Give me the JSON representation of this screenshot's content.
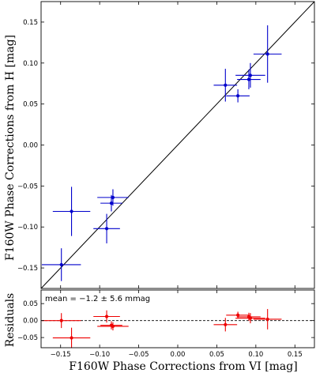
{
  "chart_data": [
    {
      "type": "scatter",
      "title": "",
      "xlabel": "F160W Phase Corrections from VI [mag]",
      "ylabel": "F160W Phase Corrections from H [mag]",
      "xlim": [
        -0.175,
        0.175
      ],
      "ylim": [
        -0.175,
        0.175
      ],
      "xticks": [
        "−0.15",
        "−0.10",
        "−0.05",
        "0.00",
        "0.05",
        "0.10",
        "0.15"
      ],
      "yticks": [
        "−0.15",
        "−0.10",
        "−0.05",
        "0.00",
        "0.05",
        "0.10",
        "0.15"
      ],
      "one_to_one_line": true,
      "color": "#0000cc",
      "points": [
        {
          "x": -0.149,
          "y": -0.146,
          "xerr": 0.025,
          "yerr": 0.02
        },
        {
          "x": -0.136,
          "y": -0.081,
          "xerr": 0.024,
          "yerr": 0.03
        },
        {
          "x": -0.091,
          "y": -0.102,
          "xerr": 0.017,
          "yerr": 0.018
        },
        {
          "x": -0.085,
          "y": -0.071,
          "xerr": 0.014,
          "yerr": 0.01
        },
        {
          "x": -0.083,
          "y": -0.064,
          "xerr": 0.02,
          "yerr": 0.01
        },
        {
          "x": 0.061,
          "y": 0.073,
          "xerr": 0.015,
          "yerr": 0.02
        },
        {
          "x": 0.077,
          "y": 0.06,
          "xerr": 0.015,
          "yerr": 0.008
        },
        {
          "x": 0.091,
          "y": 0.08,
          "xerr": 0.015,
          "yerr": 0.012
        },
        {
          "x": 0.093,
          "y": 0.085,
          "xerr": 0.019,
          "yerr": 0.015
        },
        {
          "x": 0.115,
          "y": 0.111,
          "xerr": 0.018,
          "yerr": 0.035
        }
      ]
    },
    {
      "type": "scatter",
      "ylabel": "Residuals",
      "xlim": [
        -0.175,
        0.175
      ],
      "ylim": [
        -0.08,
        0.09
      ],
      "yticks": [
        "−0.05",
        "0.00",
        "0.05"
      ],
      "zero_line": "dashed",
      "color": "#ee0000",
      "annotation": "mean = −1.2 ± 5.6 mmag",
      "points": [
        {
          "x": -0.149,
          "y": 0.0,
          "xerr": 0.025,
          "yerr": 0.022
        },
        {
          "x": -0.136,
          "y": -0.051,
          "xerr": 0.024,
          "yerr": 0.03
        },
        {
          "x": -0.091,
          "y": 0.012,
          "xerr": 0.017,
          "yerr": 0.018
        },
        {
          "x": -0.085,
          "y": -0.014,
          "xerr": 0.014,
          "yerr": 0.012
        },
        {
          "x": -0.083,
          "y": -0.017,
          "xerr": 0.02,
          "yerr": 0.012
        },
        {
          "x": 0.061,
          "y": -0.012,
          "xerr": 0.015,
          "yerr": 0.02
        },
        {
          "x": 0.077,
          "y": 0.016,
          "xerr": 0.015,
          "yerr": 0.01
        },
        {
          "x": 0.091,
          "y": 0.011,
          "xerr": 0.015,
          "yerr": 0.012
        },
        {
          "x": 0.093,
          "y": 0.007,
          "xerr": 0.019,
          "yerr": 0.015
        },
        {
          "x": 0.115,
          "y": 0.004,
          "xerr": 0.018,
          "yerr": 0.03
        }
      ]
    }
  ]
}
